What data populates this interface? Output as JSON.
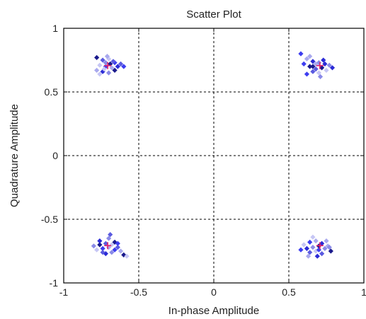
{
  "chart_data": {
    "type": "scatter",
    "title": "Scatter Plot",
    "xlabel": "In-phase Amplitude",
    "ylabel": "Quadrature Amplitude",
    "xlim": [
      -1,
      1
    ],
    "ylim": [
      -1,
      1
    ],
    "x_ticks": [
      -1,
      -0.5,
      0,
      0.5,
      1
    ],
    "y_ticks": [
      -1,
      -0.5,
      0,
      0.5,
      1
    ],
    "x_tick_labels": [
      "-1",
      "-0.5",
      "0",
      "0.5",
      "1"
    ],
    "y_tick_labels": [
      "-1",
      "-0.5",
      "0",
      "0.5",
      "1"
    ],
    "grid": true,
    "grid_style": "dashed",
    "marker": "diamond",
    "colors": [
      "#1a1a8c",
      "#2b2bd6",
      "#3d3df0",
      "#5a5ae0",
      "#8a8ae8",
      "#a9a9ee",
      "#c6c6f5"
    ],
    "reference_color": "#e0206b",
    "reference_points": [
      {
        "x": -0.707,
        "y": 0.707
      },
      {
        "x": 0.707,
        "y": 0.707
      },
      {
        "x": -0.707,
        "y": -0.707
      },
      {
        "x": 0.707,
        "y": -0.707
      }
    ],
    "points": [
      {
        "x": -0.78,
        "y": 0.77
      },
      {
        "x": -0.74,
        "y": 0.75
      },
      {
        "x": -0.7,
        "y": 0.76
      },
      {
        "x": -0.66,
        "y": 0.73
      },
      {
        "x": -0.76,
        "y": 0.71
      },
      {
        "x": -0.72,
        "y": 0.7
      },
      {
        "x": -0.68,
        "y": 0.69
      },
      {
        "x": -0.64,
        "y": 0.7
      },
      {
        "x": -0.78,
        "y": 0.67
      },
      {
        "x": -0.74,
        "y": 0.66
      },
      {
        "x": -0.7,
        "y": 0.65
      },
      {
        "x": -0.66,
        "y": 0.67
      },
      {
        "x": -0.72,
        "y": 0.73
      },
      {
        "x": -0.69,
        "y": 0.72
      },
      {
        "x": -0.62,
        "y": 0.72
      },
      {
        "x": -0.76,
        "y": 0.64
      },
      {
        "x": -0.67,
        "y": 0.74
      },
      {
        "x": -0.73,
        "y": 0.68
      },
      {
        "x": -0.6,
        "y": 0.7
      },
      {
        "x": -0.71,
        "y": 0.78
      },
      {
        "x": 0.58,
        "y": 0.8
      },
      {
        "x": 0.62,
        "y": 0.76
      },
      {
        "x": 0.66,
        "y": 0.74
      },
      {
        "x": 0.7,
        "y": 0.73
      },
      {
        "x": 0.74,
        "y": 0.72
      },
      {
        "x": 0.77,
        "y": 0.71
      },
      {
        "x": 0.64,
        "y": 0.7
      },
      {
        "x": 0.68,
        "y": 0.68
      },
      {
        "x": 0.72,
        "y": 0.69
      },
      {
        "x": 0.66,
        "y": 0.66
      },
      {
        "x": 0.7,
        "y": 0.65
      },
      {
        "x": 0.62,
        "y": 0.64
      },
      {
        "x": 0.75,
        "y": 0.67
      },
      {
        "x": 0.6,
        "y": 0.72
      },
      {
        "x": 0.68,
        "y": 0.72
      },
      {
        "x": 0.73,
        "y": 0.75
      },
      {
        "x": 0.64,
        "y": 0.78
      },
      {
        "x": 0.79,
        "y": 0.69
      },
      {
        "x": 0.71,
        "y": 0.62
      },
      {
        "x": 0.66,
        "y": 0.7
      },
      {
        "x": -0.8,
        "y": -0.71
      },
      {
        "x": -0.76,
        "y": -0.7
      },
      {
        "x": -0.72,
        "y": -0.69
      },
      {
        "x": -0.68,
        "y": -0.7
      },
      {
        "x": -0.64,
        "y": -0.72
      },
      {
        "x": -0.78,
        "y": -0.74
      },
      {
        "x": -0.74,
        "y": -0.73
      },
      {
        "x": -0.7,
        "y": -0.72
      },
      {
        "x": -0.66,
        "y": -0.74
      },
      {
        "x": -0.62,
        "y": -0.75
      },
      {
        "x": -0.72,
        "y": -0.77
      },
      {
        "x": -0.68,
        "y": -0.76
      },
      {
        "x": -0.76,
        "y": -0.67
      },
      {
        "x": -0.7,
        "y": -0.65
      },
      {
        "x": -0.66,
        "y": -0.68
      },
      {
        "x": -0.69,
        "y": -0.62
      },
      {
        "x": -0.6,
        "y": -0.78
      },
      {
        "x": -0.74,
        "y": -0.76
      },
      {
        "x": -0.58,
        "y": -0.79
      },
      {
        "x": -0.64,
        "y": -0.69
      },
      {
        "x": 0.6,
        "y": -0.7
      },
      {
        "x": 0.64,
        "y": -0.68
      },
      {
        "x": 0.68,
        "y": -0.67
      },
      {
        "x": 0.72,
        "y": -0.69
      },
      {
        "x": 0.76,
        "y": -0.71
      },
      {
        "x": 0.62,
        "y": -0.73
      },
      {
        "x": 0.66,
        "y": -0.72
      },
      {
        "x": 0.7,
        "y": -0.71
      },
      {
        "x": 0.74,
        "y": -0.73
      },
      {
        "x": 0.78,
        "y": -0.75
      },
      {
        "x": 0.64,
        "y": -0.76
      },
      {
        "x": 0.68,
        "y": -0.75
      },
      {
        "x": 0.72,
        "y": -0.77
      },
      {
        "x": 0.66,
        "y": -0.64
      },
      {
        "x": 0.7,
        "y": -0.74
      },
      {
        "x": 0.75,
        "y": -0.67
      },
      {
        "x": 0.58,
        "y": -0.74
      },
      {
        "x": 0.63,
        "y": -0.79
      },
      {
        "x": 0.69,
        "y": -0.79
      },
      {
        "x": 0.77,
        "y": -0.72
      }
    ]
  }
}
